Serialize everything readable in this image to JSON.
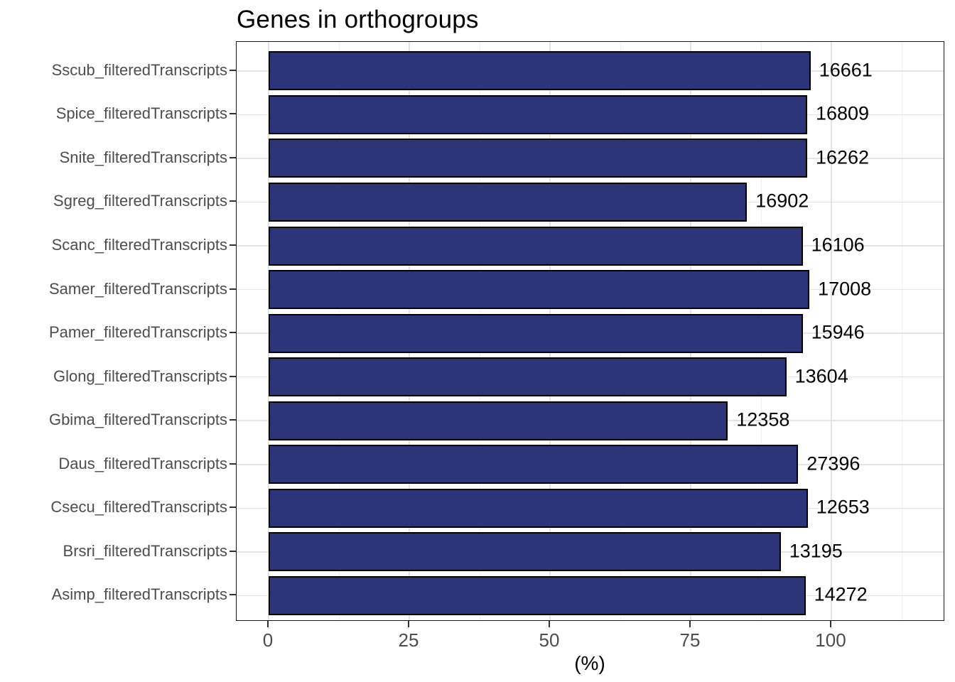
{
  "title": "Genes in orthogroups",
  "chart_data": {
    "type": "bar",
    "orientation": "horizontal",
    "title": "Genes in orthogroups",
    "xlabel": "(%)",
    "ylabel": "",
    "categories": [
      "Sscub_filteredTranscripts",
      "Spice_filteredTranscripts",
      "Snite_filteredTranscripts",
      "Sgreg_filteredTranscripts",
      "Scanc_filteredTranscripts",
      "Samer_filteredTranscripts",
      "Pamer_filteredTranscripts",
      "Glong_filteredTranscripts",
      "Gbima_filteredTranscripts",
      "Daus_filteredTranscripts",
      "Csecu_filteredTranscripts",
      "Brsri_filteredTranscripts",
      "Asimp_filteredTranscripts"
    ],
    "values": [
      96.3,
      95.7,
      95.7,
      85.0,
      94.9,
      96.1,
      94.9,
      92.0,
      81.6,
      94.1,
      95.8,
      91.0,
      95.4
    ],
    "bar_labels": [
      "16661",
      "16809",
      "16262",
      "16902",
      "16106",
      "17008",
      "15946",
      "13604",
      "12358",
      "27396",
      "12653",
      "13195",
      "14272"
    ],
    "x_ticks": [
      "0",
      "25",
      "50",
      "75",
      "100"
    ],
    "x_tick_values": [
      0,
      25,
      50,
      75,
      100
    ],
    "x_minor_tick_values": [
      12.5,
      37.5,
      62.5,
      87.5,
      112.5
    ],
    "xlim": [
      -5.7,
      120.3
    ],
    "grid": true,
    "legend": false,
    "colors": {
      "bar_fill": "#2d3478",
      "bar_stroke": "#000000",
      "grid_major": "#e4e4e4",
      "grid_minor": "#f1f1f1",
      "axis_text": "#4d4d4d",
      "value_text": "#000000",
      "panel_border": "#1a1a1a"
    }
  }
}
